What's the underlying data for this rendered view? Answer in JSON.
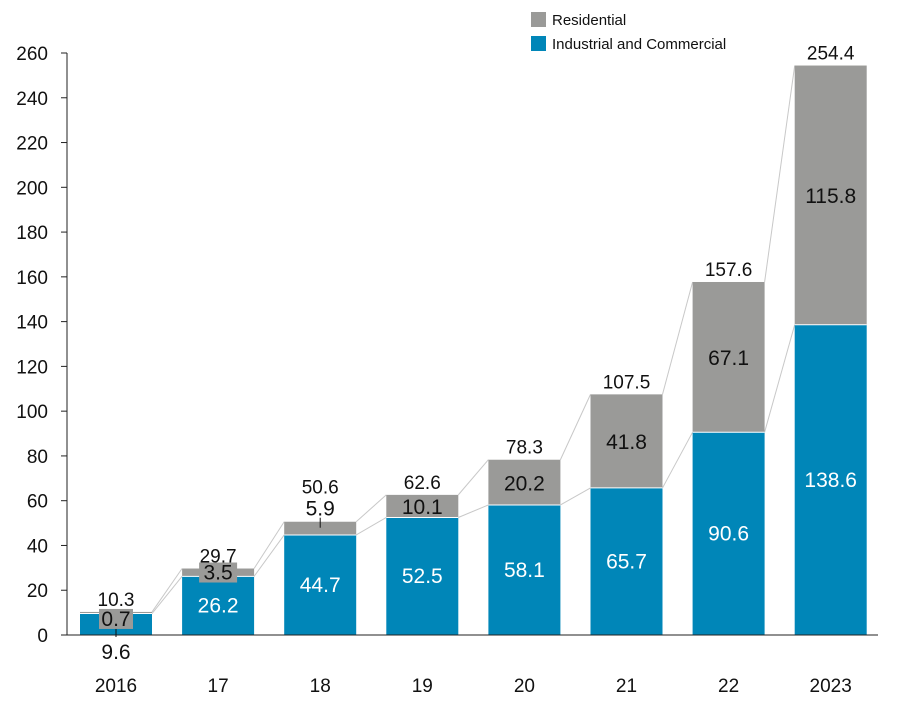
{
  "chart_data": {
    "type": "bar",
    "stacked": true,
    "title": "",
    "xlabel": "",
    "ylabel": "",
    "ylim": [
      0,
      260
    ],
    "y_ticks": [
      0,
      20,
      40,
      60,
      80,
      100,
      120,
      140,
      160,
      180,
      200,
      220,
      240,
      260
    ],
    "categories": [
      "2016",
      "17",
      "18",
      "19",
      "20",
      "21",
      "22",
      "2023"
    ],
    "series": [
      {
        "name": "Industrial and Commercial",
        "color": "#0086b8",
        "values": [
          9.6,
          26.2,
          44.7,
          52.5,
          58.1,
          65.7,
          90.6,
          138.6
        ],
        "labels": [
          "9.6",
          "26.2",
          "44.7",
          "52.5",
          "58.1",
          "65.7",
          "90.6",
          "138.6"
        ]
      },
      {
        "name": "Residential",
        "color": "#9a9a98",
        "values": [
          0.7,
          3.5,
          5.9,
          10.1,
          20.2,
          41.8,
          67.1,
          115.8
        ],
        "labels": [
          "0.7",
          "3.5",
          "5.9",
          "10.1",
          "20.2",
          "41.8",
          "67.1",
          "115.8"
        ]
      }
    ],
    "totals": [
      10.3,
      29.7,
      50.6,
      62.6,
      78.3,
      107.5,
      157.6,
      254.4
    ],
    "total_labels": [
      "10.3",
      "29.7",
      "50.6",
      "62.6",
      "78.3",
      "107.5",
      "157.6",
      "254.4"
    ],
    "legend": {
      "position": "top-right",
      "items": [
        {
          "label": "Residential",
          "color": "#9a9a98"
        },
        {
          "label": "Industrial and Commercial",
          "color": "#0086b8"
        }
      ]
    },
    "grid": false
  }
}
